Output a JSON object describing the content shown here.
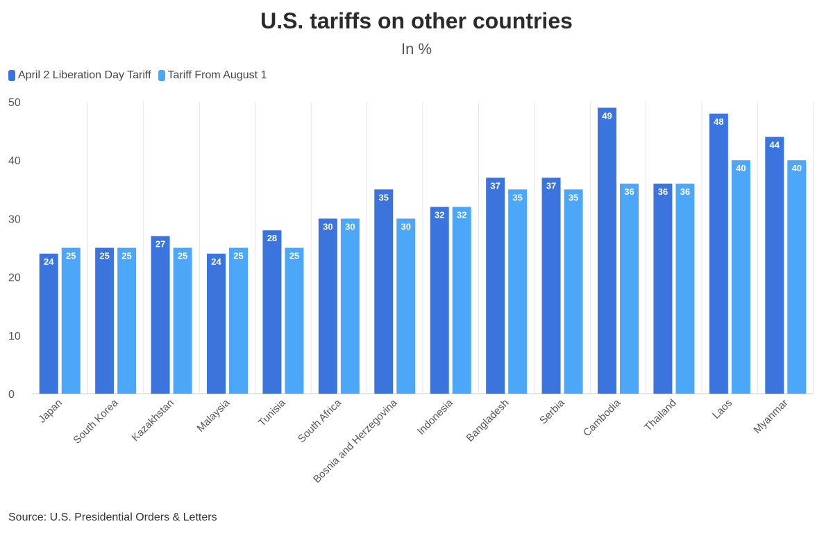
{
  "chart_data": {
    "type": "bar",
    "title": "U.S. tariffs on other countries",
    "subtitle": "In %",
    "categories": [
      "Japan",
      "South Korea",
      "Kazakhstan",
      "Malaysia",
      "Tunisia",
      "South Africa",
      "Bosnia and Herzegovina",
      "Indonesia",
      "Bangladesh",
      "Serbia",
      "Cambodia",
      "Thailand",
      "Laos",
      "Myanmar"
    ],
    "series": [
      {
        "name": "April 2 Liberation Day Tariff",
        "color": "#3b74dc",
        "values": [
          24,
          25,
          27,
          24,
          28,
          30,
          35,
          32,
          37,
          37,
          49,
          36,
          48,
          44
        ]
      },
      {
        "name": "Tariff From August 1",
        "color": "#4da7f8",
        "values": [
          25,
          25,
          25,
          25,
          25,
          30,
          30,
          32,
          35,
          35,
          36,
          36,
          40,
          40
        ]
      }
    ],
    "ylim": [
      0,
      50
    ],
    "yticks": [
      0,
      10,
      20,
      30,
      40,
      50
    ],
    "xlabel": "",
    "ylabel": "",
    "legend": "top-left",
    "grid": "vertical",
    "source": "Source: U.S. Presidential Orders & Letters"
  }
}
